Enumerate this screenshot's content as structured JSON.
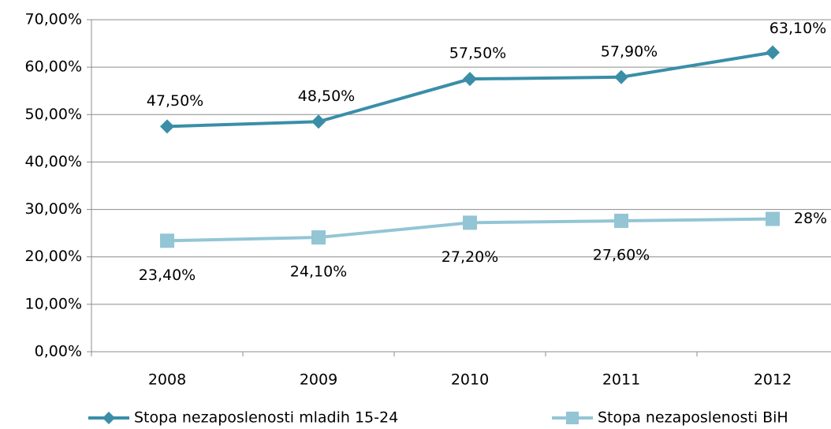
{
  "chart_data": {
    "type": "line",
    "categories": [
      "2008",
      "2009",
      "2010",
      "2011",
      "2012"
    ],
    "series": [
      {
        "name": "Stopa nezaposlenosti mladih 15-24",
        "color": "#3a8ea8",
        "marker": "diamond",
        "values": [
          47.5,
          48.5,
          57.5,
          57.9,
          63.1
        ],
        "value_labels": [
          "47,50%",
          "48,50%",
          "57,50%",
          "57,90%",
          "63,10%"
        ]
      },
      {
        "name": "Stopa nezaposlenosti BiH",
        "color": "#93c5d5",
        "marker": "square",
        "values": [
          23.4,
          24.1,
          27.2,
          27.6,
          28
        ],
        "value_labels": [
          "23,40%",
          "24,10%",
          "27,20%",
          "27,60%",
          "28%"
        ]
      }
    ],
    "ylim": [
      0,
      70
    ],
    "yticks": [
      {
        "value": 0,
        "label": "0,00%"
      },
      {
        "value": 10,
        "label": "10,00%"
      },
      {
        "value": 20,
        "label": "20,00%"
      },
      {
        "value": 30,
        "label": "30,00%"
      },
      {
        "value": 40,
        "label": "40,00%"
      },
      {
        "value": 50,
        "label": "50,00%"
      },
      {
        "value": 60,
        "label": "60,00%"
      },
      {
        "value": 70,
        "label": "70,00%"
      }
    ],
    "grid": true,
    "legend": "bottom"
  }
}
